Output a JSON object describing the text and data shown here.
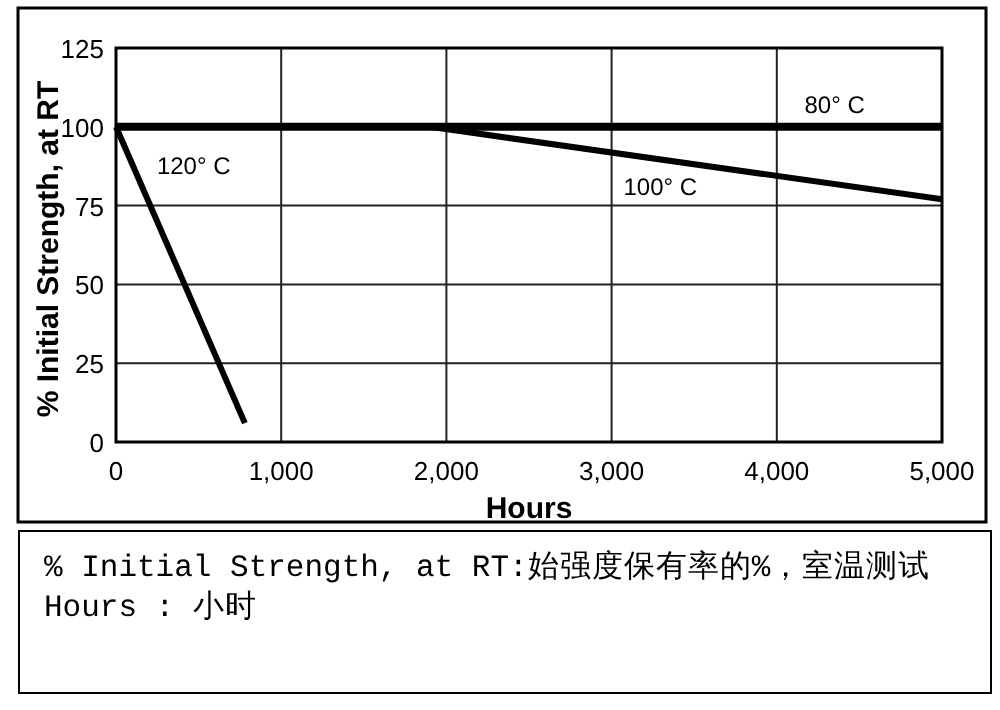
{
  "chart_data": {
    "type": "line",
    "xlabel": "Hours",
    "ylabel": "% Initial Strength, at RT",
    "xlim": [
      0,
      5000
    ],
    "ylim": [
      0,
      125
    ],
    "xticks": [
      0,
      {
        "value": 1000,
        "label": "1,000"
      },
      {
        "value": 2000,
        "label": "2,000"
      },
      {
        "value": 3000,
        "label": "3,000"
      },
      {
        "value": 4000,
        "label": "4,000"
      },
      {
        "value": 5000,
        "label": "5,000"
      }
    ],
    "yticks": [
      0,
      25,
      50,
      75,
      100,
      125
    ],
    "grid": true,
    "marker": "none",
    "line_style": "solid",
    "series": [
      {
        "name": "80° C",
        "color": "#000000",
        "x": [
          0,
          5000
        ],
        "values": [
          100,
          100
        ]
      },
      {
        "name": "100° C",
        "color": "#000000",
        "x": [
          1900,
          5000
        ],
        "values": [
          100,
          77
        ]
      },
      {
        "name": "120° C",
        "color": "#000000",
        "x": [
          0,
          780
        ],
        "values": [
          100,
          6
        ]
      }
    ],
    "annotations": [
      "% Initial Strength, at RT:始强度保有率的%，室温测试",
      "Hours : 小时"
    ]
  }
}
